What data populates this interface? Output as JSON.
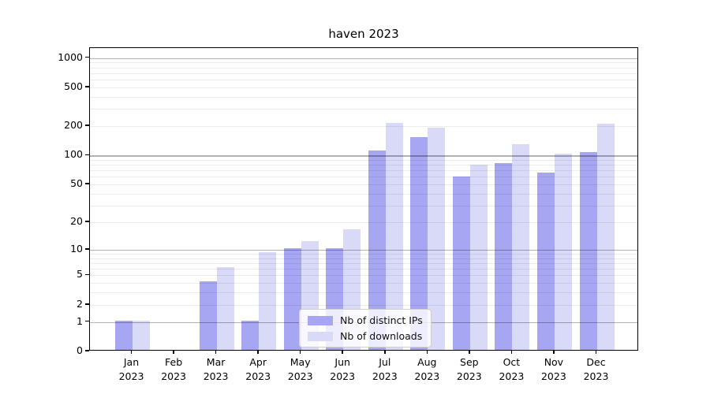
{
  "title": "haven 2023",
  "legend": {
    "items": [
      {
        "label": "Nb of distinct IPs",
        "color": "#a6a6f2"
      },
      {
        "label": "Nb of downloads",
        "color": "#d9d9f8"
      }
    ]
  },
  "chart_data": {
    "type": "bar",
    "title": "haven 2023",
    "categories": [
      "Jan 2023",
      "Feb 2023",
      "Mar 2023",
      "Apr 2023",
      "May 2023",
      "Jun 2023",
      "Jul 2023",
      "Aug 2023",
      "Sep 2023",
      "Oct 2023",
      "Nov 2023",
      "Dec 2023"
    ],
    "series": [
      {
        "name": "Nb of distinct IPs",
        "color": "#a6a6f2",
        "values": [
          1,
          0,
          4,
          1,
          10,
          10,
          108,
          150,
          58,
          80,
          64,
          104
        ]
      },
      {
        "name": "Nb of downloads",
        "color": "#d9d9f8",
        "values": [
          1,
          0,
          6,
          9,
          12,
          16,
          210,
          186,
          78,
          127,
          100,
          205
        ]
      }
    ],
    "y_axis": {
      "scale": "log1p",
      "tick_values": [
        0,
        1,
        2,
        5,
        10,
        20,
        50,
        100,
        200,
        500,
        1000
      ],
      "major_gridlines": [
        1,
        10,
        100,
        1000
      ],
      "top_value": 1265
    },
    "grid": true,
    "legend_position": "lower-center inside plot"
  }
}
